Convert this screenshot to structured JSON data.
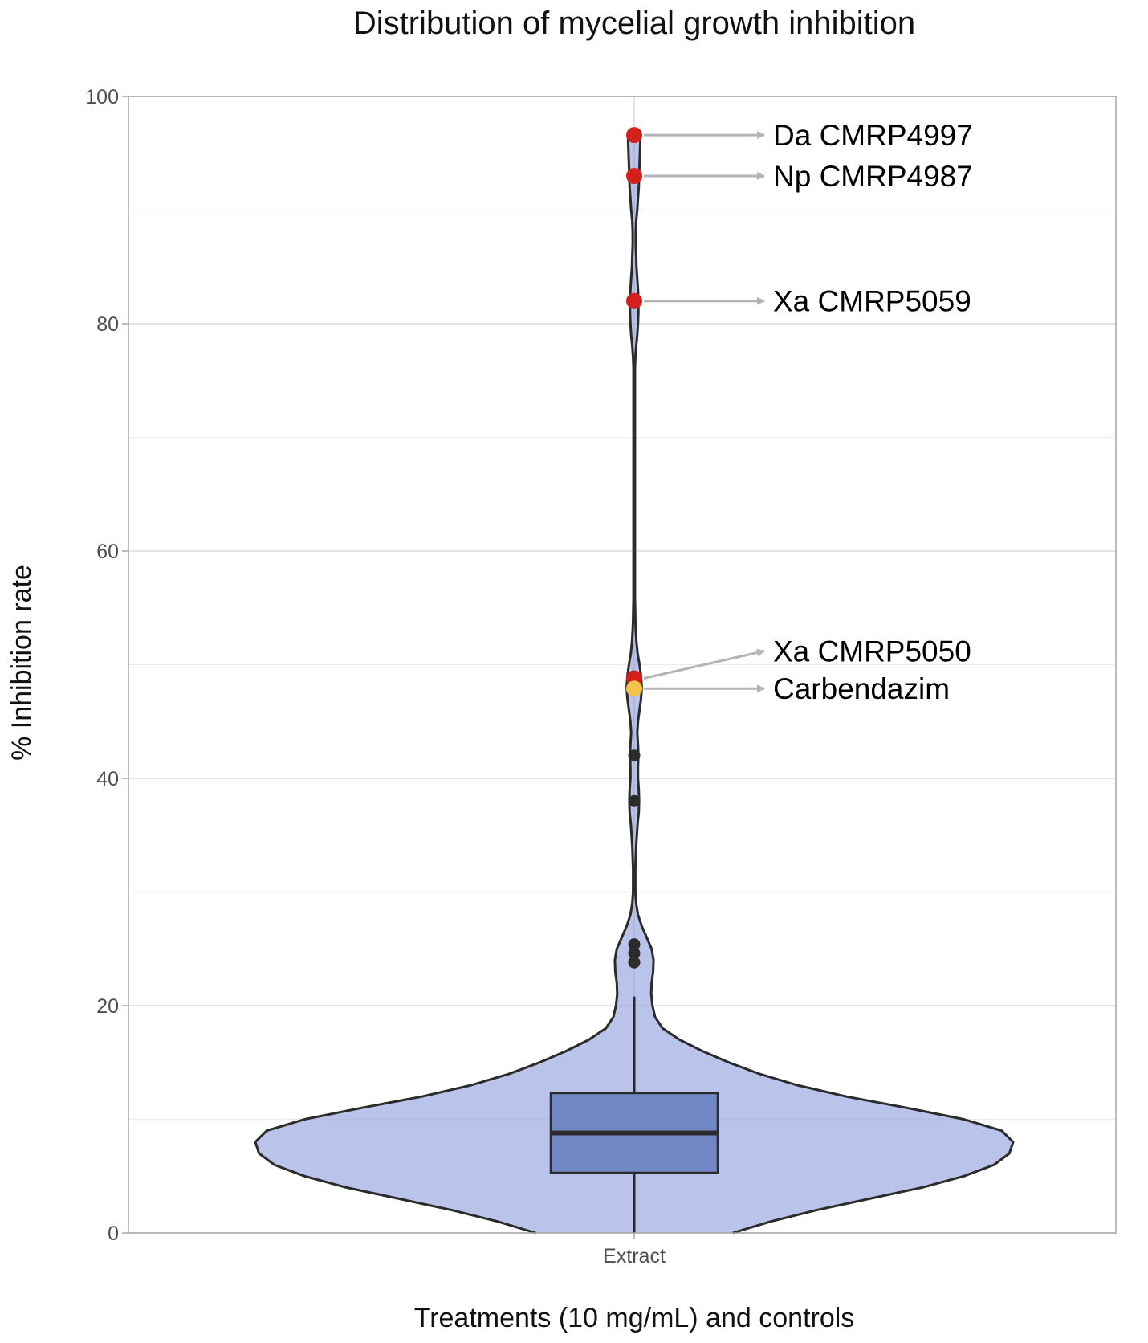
{
  "chart_data": {
    "type": "violin",
    "title": "Distribution of mycelial growth inhibition",
    "xlabel": "Treatments (10 mg/mL) and controls",
    "ylabel": "% Inhibition rate",
    "ylim": [
      0,
      100
    ],
    "y_ticks": [
      0,
      20,
      40,
      60,
      80,
      100
    ],
    "y_minor_gridlines": [
      10,
      30,
      50,
      70,
      90
    ],
    "grid": true,
    "legend": "none",
    "categories": [
      "Extract"
    ],
    "violin": {
      "density_profile": [
        [
          0,
          0.26
        ],
        [
          1,
          0.36
        ],
        [
          2,
          0.48
        ],
        [
          3,
          0.62
        ],
        [
          4,
          0.76
        ],
        [
          5,
          0.87
        ],
        [
          6,
          0.95
        ],
        [
          7,
          0.99
        ],
        [
          8,
          1.0
        ],
        [
          9,
          0.97
        ],
        [
          10,
          0.87
        ],
        [
          11,
          0.72
        ],
        [
          12,
          0.56
        ],
        [
          13,
          0.43
        ],
        [
          14,
          0.33
        ],
        [
          15,
          0.25
        ],
        [
          16,
          0.18
        ],
        [
          17,
          0.12
        ],
        [
          18,
          0.075
        ],
        [
          19,
          0.055
        ],
        [
          20,
          0.048
        ],
        [
          21,
          0.045
        ],
        [
          22,
          0.046
        ],
        [
          23,
          0.05
        ],
        [
          24,
          0.051
        ],
        [
          25,
          0.046
        ],
        [
          26,
          0.033
        ],
        [
          27,
          0.02
        ],
        [
          28,
          0.01
        ],
        [
          29,
          0.005
        ],
        [
          30,
          0.003
        ],
        [
          32,
          0.003
        ],
        [
          34,
          0.005
        ],
        [
          36,
          0.009
        ],
        [
          37,
          0.012
        ],
        [
          38,
          0.013
        ],
        [
          39,
          0.012
        ],
        [
          40,
          0.01
        ],
        [
          41,
          0.01
        ],
        [
          42,
          0.011
        ],
        [
          43,
          0.01
        ],
        [
          44,
          0.008
        ],
        [
          45,
          0.01
        ],
        [
          46,
          0.014
        ],
        [
          47,
          0.018
        ],
        [
          48,
          0.02
        ],
        [
          49,
          0.018
        ],
        [
          50,
          0.014
        ],
        [
          51,
          0.009
        ],
        [
          52,
          0.006
        ],
        [
          53,
          0.004
        ],
        [
          54,
          0.003
        ],
        [
          56,
          0.002
        ],
        [
          70,
          0.002
        ],
        [
          76,
          0.002
        ],
        [
          77,
          0.003
        ],
        [
          78,
          0.005
        ],
        [
          79,
          0.008
        ],
        [
          80,
          0.01
        ],
        [
          81,
          0.011
        ],
        [
          82,
          0.011
        ],
        [
          83,
          0.01
        ],
        [
          84,
          0.008
        ],
        [
          85,
          0.006
        ],
        [
          86,
          0.005
        ],
        [
          87,
          0.004
        ],
        [
          88,
          0.004
        ],
        [
          89,
          0.005
        ],
        [
          90,
          0.008
        ],
        [
          91,
          0.01
        ],
        [
          92,
          0.012
        ],
        [
          93,
          0.013
        ],
        [
          94,
          0.014
        ],
        [
          95,
          0.015
        ],
        [
          96,
          0.016
        ],
        [
          96.6,
          0.016
        ]
      ],
      "fill": "#8c9bdb",
      "stroke": "#2b2b2b"
    },
    "boxplot": {
      "q1": 5.3,
      "median": 8.8,
      "q3": 12.3,
      "whisker_low": 0,
      "whisker_high": 20.8,
      "fill": "#7088c6"
    },
    "outliers": [
      {
        "y": 96.6,
        "color": "#d51f1a"
      },
      {
        "y": 93.0,
        "color": "#d51f1a"
      },
      {
        "y": 82.0,
        "color": "#d51f1a"
      },
      {
        "y": 48.8,
        "color": "#d51f1a"
      },
      {
        "y": 47.9,
        "color": "#f5c24c"
      },
      {
        "y": 42.0,
        "color": "#2b2b2b"
      },
      {
        "y": 38.0,
        "color": "#2b2b2b"
      },
      {
        "y": 25.4,
        "color": "#2b2b2b"
      },
      {
        "y": 24.6,
        "color": "#2b2b2b"
      },
      {
        "y": 23.8,
        "color": "#2b2b2b"
      }
    ],
    "annotations": [
      {
        "text": "Da CMRP4997",
        "point_y": 96.6,
        "label_y": 96.6
      },
      {
        "text": "Np CMRP4987",
        "point_y": 93.0,
        "label_y": 93.0
      },
      {
        "text": "Xa CMRP5059",
        "point_y": 82.0,
        "label_y": 82.0
      },
      {
        "text": "Xa CMRP5050",
        "point_y": 48.8,
        "label_y": 51.2
      },
      {
        "text": "Carbendazim",
        "point_y": 47.9,
        "label_y": 47.9
      }
    ],
    "colors": {
      "red_highlight": "#d51f1a",
      "control": "#f5c24c",
      "arrow": "#b3b3b3",
      "gridline": "#dcdcdc",
      "panel_border": "#a6a6a6"
    }
  }
}
